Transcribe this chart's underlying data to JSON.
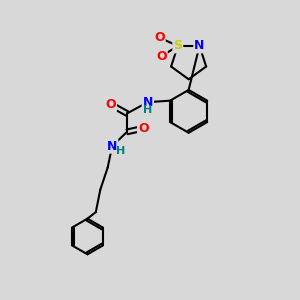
{
  "background_color": "#d8d8d8",
  "bond_color": "#000000",
  "atom_colors": {
    "N": "#0000ff",
    "O": "#ff0000",
    "S": "#cccc00",
    "H_label": "#008080",
    "C": "#000000"
  },
  "figsize": [
    3.0,
    3.0
  ],
  "dpi": 100
}
